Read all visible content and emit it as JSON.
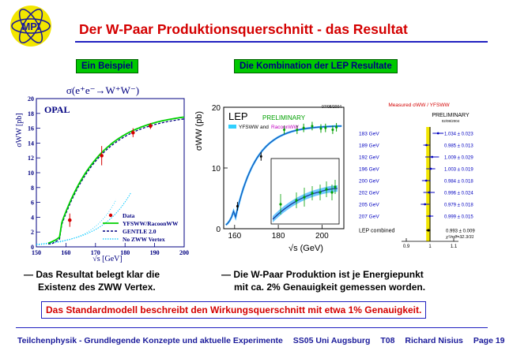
{
  "header": {
    "title": "Der W-Paar Produktionsquerschnitt - das Resultat",
    "logo_text": "MPI"
  },
  "labels": {
    "left": "Ein Beispiel",
    "right": "Die Kombination der LEP Resultate"
  },
  "opal": {
    "formula": "σ(e⁺e⁻→W⁺W⁻)",
    "name": "OPAL",
    "ylabel": "σWW [pb]",
    "xlabel": "√s [GeV]",
    "xticks": [
      "150",
      "160",
      "170",
      "180",
      "190",
      "200"
    ],
    "yticks": [
      "0",
      "2",
      "4",
      "6",
      "8",
      "10",
      "12",
      "14",
      "16",
      "18",
      "20"
    ],
    "legend": [
      "Data",
      "YFSWW/RacoonWW",
      "GENTLE 2.0",
      "No ZWW Vertex"
    ]
  },
  "lep": {
    "name": "LEP",
    "prelim": "PRELIMINARY",
    "date": "07/08/2004",
    "legend_a": "YFSWW",
    "legend_and": "and",
    "legend_b": "RacoonWW",
    "ylabel": "σWW (pb)",
    "xlabel": "√s (GeV)",
    "xticks": [
      "160",
      "180",
      "200"
    ],
    "yticks": [
      "0",
      "10",
      "20"
    ]
  },
  "ratio": {
    "title": "Measured σWW / YFSWW",
    "prelim": "PRELIMINARY",
    "date": "02/08/2004",
    "rows": [
      {
        "energy": "183 GeV",
        "value": "1.034 ± 0.023"
      },
      {
        "energy": "189 GeV",
        "value": "0.985 ± 0.013"
      },
      {
        "energy": "192 GeV",
        "value": "1.009 ± 0.029"
      },
      {
        "energy": "196 GeV",
        "value": "1.003 ± 0.019"
      },
      {
        "energy": "200 GeV",
        "value": "0.984 ± 0.018"
      },
      {
        "energy": "202 GeV",
        "value": "0.996 ± 0.024"
      },
      {
        "energy": "205 GeV",
        "value": "0.979 ± 0.018"
      },
      {
        "energy": "207 GeV",
        "value": "0.999 ± 0.015"
      }
    ],
    "combined_label": "LEP combined",
    "combined_value": "0.993 ± 0.009",
    "chi2": "χ²/ndf=32.3/31",
    "xticks": [
      "0.9",
      "1",
      "1.1"
    ]
  },
  "bullets": {
    "left_1": "— Das Resultat belegt klar die",
    "left_2": "Existenz des ZWW Vertex.",
    "right_1": "— Die W-Paar Produktion ist je Energiepunkt",
    "right_2": "mit ca. 2% Genauigkeit gemessen worden."
  },
  "result": "Das Standardmodell beschreibt den Wirkungsquerschnitt mit etwa 1% Genauigkeit.",
  "footer": {
    "course": "Teilchenphysik - Grundlegende Konzepte und aktuelle Experimente",
    "term": "SS05 Uni Augsburg",
    "lecture": "T08",
    "author": "Richard Nisius",
    "page": "Page 19"
  },
  "chart_data": [
    {
      "type": "line",
      "title": "σ(e⁺e⁻→W⁺W⁻)",
      "xlabel": "√s [GeV]",
      "ylabel": "σWW [pb]",
      "xlim": [
        150,
        200
      ],
      "ylim": [
        0,
        20
      ],
      "points": [
        {
          "x": 161.3,
          "y": 3.6,
          "err": 0.9
        },
        {
          "x": 172.1,
          "y": 12.3,
          "err": 1.3
        },
        {
          "x": 182.7,
          "y": 15.4,
          "err": 0.6
        },
        {
          "x": 188.6,
          "y": 16.3,
          "err": 0.4
        }
      ],
      "series": [
        {
          "name": "YFSWW/RacoonWW",
          "color": "#00d000"
        },
        {
          "name": "GENTLE 2.0",
          "color": "#000080"
        },
        {
          "name": "No ZWW Vertex",
          "color": "#00c8ff"
        }
      ]
    },
    {
      "type": "line",
      "title": "LEP",
      "xlabel": "√s (GeV)",
      "ylabel": "σWW (pb)",
      "xlim": [
        155,
        210
      ],
      "ylim": [
        0,
        20
      ],
      "points": [
        {
          "x": 161.3,
          "y": 3.7
        },
        {
          "x": 172.1,
          "y": 11.9
        },
        {
          "x": 182.7,
          "y": 16.3
        },
        {
          "x": 188.6,
          "y": 16.3
        },
        {
          "x": 191.6,
          "y": 16.6
        },
        {
          "x": 195.5,
          "y": 16.9
        },
        {
          "x": 199.5,
          "y": 16.5
        },
        {
          "x": 201.6,
          "y": 16.6
        },
        {
          "x": 204.9,
          "y": 16.3
        },
        {
          "x": 206.6,
          "y": 16.7
        }
      ]
    },
    {
      "type": "scatter",
      "title": "Measured σWW / YFSWW",
      "xlim": [
        0.88,
        1.12
      ],
      "points": [
        {
          "label": "183 GeV",
          "x": 1.034,
          "err": 0.023
        },
        {
          "label": "189 GeV",
          "x": 0.985,
          "err": 0.013
        },
        {
          "label": "192 GeV",
          "x": 1.009,
          "err": 0.029
        },
        {
          "label": "196 GeV",
          "x": 1.003,
          "err": 0.019
        },
        {
          "label": "200 GeV",
          "x": 0.984,
          "err": 0.018
        },
        {
          "label": "202 GeV",
          "x": 0.996,
          "err": 0.024
        },
        {
          "label": "205 GeV",
          "x": 0.979,
          "err": 0.018
        },
        {
          "label": "207 GeV",
          "x": 0.999,
          "err": 0.015
        },
        {
          "label": "LEP combined",
          "x": 0.993,
          "err": 0.009
        }
      ]
    }
  ]
}
